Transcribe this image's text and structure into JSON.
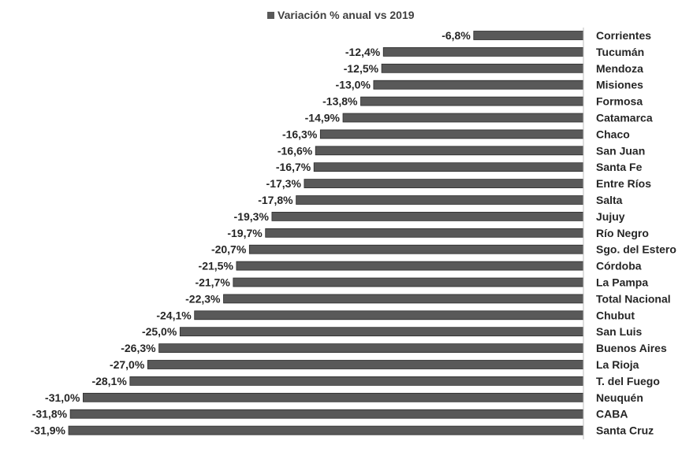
{
  "chart_data": {
    "type": "bar",
    "orientation": "horizontal",
    "categories": [
      "Corrientes",
      "Tucumán",
      "Mendoza",
      "Misiones",
      "Formosa",
      "Catamarca",
      "Chaco",
      "San Juan",
      "Santa Fe",
      "Entre Ríos",
      "Salta",
      "Jujuy",
      "Río Negro",
      "Sgo. del Estero",
      "Córdoba",
      "La Pampa",
      "Total Nacional",
      "Chubut",
      "San Luis",
      "Buenos Aires",
      "La Rioja",
      "T. del Fuego",
      "Neuquén",
      "CABA",
      "Santa Cruz"
    ],
    "series": [
      {
        "name": "Variación % anual vs 2019",
        "color": "#595959",
        "values": [
          -6.8,
          -12.4,
          -12.5,
          -13.0,
          -13.8,
          -14.9,
          -16.3,
          -16.6,
          -16.7,
          -17.3,
          -17.8,
          -19.3,
          -19.7,
          -20.7,
          -21.5,
          -21.7,
          -22.3,
          -24.1,
          -25.0,
          -26.3,
          -27.0,
          -28.1,
          -31.0,
          -31.8,
          -31.9
        ],
        "labels": [
          "-6,8%",
          "-12,4%",
          "-12,5%",
          "-13,0%",
          "-13,8%",
          "-14,9%",
          "-16,3%",
          "-16,6%",
          "-16,7%",
          "-17,3%",
          "-17,8%",
          "-19,3%",
          "-19,7%",
          "-20,7%",
          "-21,5%",
          "-21,7%",
          "-22,3%",
          "-24,1%",
          "-25,0%",
          "-26,3%",
          "-27,0%",
          "-28,1%",
          "-31,0%",
          "-31,8%",
          "-31,9%"
        ]
      }
    ],
    "xlim": [
      -31.9,
      0
    ],
    "grid": false,
    "legend_position": "top"
  }
}
